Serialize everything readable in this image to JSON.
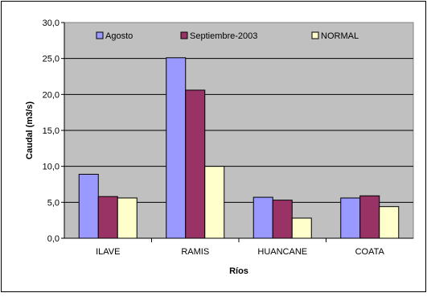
{
  "chart_data": {
    "type": "bar",
    "title": "",
    "xlabel": "Ríos",
    "ylabel": "Caudal (m3/s)",
    "categories": [
      "ILAVE",
      "RAMIS",
      "HUANCANE",
      "COATA"
    ],
    "series": [
      {
        "name": "Agosto",
        "color": "#9999ff",
        "values": [
          8.9,
          25.1,
          5.7,
          5.6
        ]
      },
      {
        "name": "Septiembre-2003",
        "color": "#993366",
        "values": [
          5.8,
          20.6,
          5.3,
          5.9
        ]
      },
      {
        "name": "NORMAL",
        "color": "#ffffcc",
        "values": [
          5.6,
          10.0,
          2.8,
          4.4
        ]
      }
    ],
    "ylim": [
      0,
      30
    ],
    "yticks": [
      "0,0",
      "5,0",
      "10,0",
      "15,0",
      "20,0",
      "25,0",
      "30,0"
    ],
    "grid": true,
    "legend_position": "top",
    "plot_background": "#c0c0c0"
  }
}
